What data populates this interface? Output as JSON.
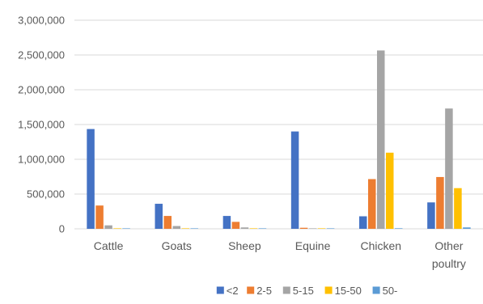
{
  "chart_data": {
    "type": "bar",
    "title": "",
    "xlabel": "",
    "ylabel": "",
    "ylim": [
      0,
      3000000
    ],
    "yticks": [
      0,
      500000,
      1000000,
      1500000,
      2000000,
      2500000,
      3000000
    ],
    "ytick_labels": [
      "0",
      "500,000",
      "1,000,000",
      "1,500,000",
      "2,000,000",
      "2,500,000",
      "3,000,000"
    ],
    "grid": "horizontal",
    "legend_position": "bottom",
    "categories": [
      [
        "Cattle"
      ],
      [
        "Goats"
      ],
      [
        "Sheep"
      ],
      [
        "Equine"
      ],
      [
        "Chicken"
      ],
      [
        "Other",
        "poultry"
      ]
    ],
    "series": [
      {
        "name": "<2",
        "color": "#4472C4",
        "values": [
          1435000,
          360000,
          185000,
          1400000,
          180000,
          380000
        ]
      },
      {
        "name": "2-5",
        "color": "#ED7D31",
        "values": [
          335000,
          185000,
          100000,
          15000,
          715000,
          745000
        ]
      },
      {
        "name": "5-15",
        "color": "#A5A5A5",
        "values": [
          50000,
          40000,
          20000,
          5000,
          2565000,
          1730000
        ]
      },
      {
        "name": "15-50",
        "color": "#FFC000",
        "values": [
          5000,
          3000,
          2000,
          1000,
          1095000,
          585000
        ]
      },
      {
        "name": "50-",
        "color": "#5B9BD5",
        "values": [
          2000,
          1000,
          1000,
          500,
          8000,
          20000
        ]
      }
    ]
  }
}
